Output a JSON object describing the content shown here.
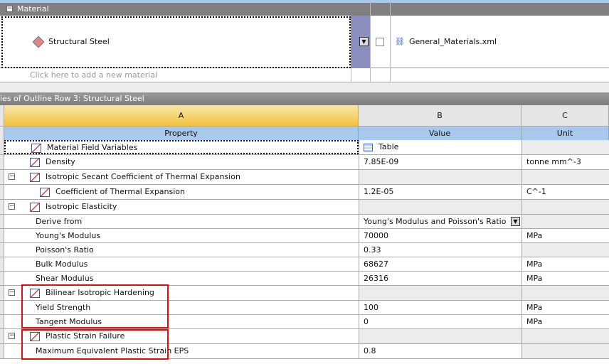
{
  "material_section": {
    "header": "Material",
    "material_name": "Structural Steel",
    "source": "General_Materials.xml",
    "add_prompt": "Click here to add a new material"
  },
  "properties": {
    "title": "ies of Outline Row 3: Structural Steel",
    "columns": [
      "A",
      "B",
      "C"
    ],
    "headers": {
      "property": "Property",
      "value": "Value",
      "unit": "Unit"
    },
    "rows": [
      {
        "property": "Material Field Variables",
        "value": "Table",
        "unit": ""
      },
      {
        "property": "Density",
        "value": "7.85E-09",
        "unit": "tonne mm^-3"
      },
      {
        "property": "Isotropic Secant Coefficient of Thermal Expansion",
        "value": "",
        "unit": ""
      },
      {
        "property": "Coefficient of Thermal Expansion",
        "value": "1.2E-05",
        "unit": "C^-1"
      },
      {
        "property": "Isotropic Elasticity",
        "value": "",
        "unit": ""
      },
      {
        "property": "Derive from",
        "value": "Young's Modulus and Poisson's Ratio",
        "unit": ""
      },
      {
        "property": "Young's Modulus",
        "value": "70000",
        "unit": "MPa"
      },
      {
        "property": "Poisson's Ratio",
        "value": "0.33",
        "unit": ""
      },
      {
        "property": "Bulk Modulus",
        "value": "68627",
        "unit": "MPa"
      },
      {
        "property": "Shear Modulus",
        "value": "26316",
        "unit": "MPa"
      },
      {
        "property": "Bilinear Isotropic Hardening",
        "value": "",
        "unit": ""
      },
      {
        "property": "Yield Strength",
        "value": "100",
        "unit": "MPa"
      },
      {
        "property": "Tangent Modulus",
        "value": "0",
        "unit": "MPa"
      },
      {
        "property": "Plastic Strain Failure",
        "value": "",
        "unit": ""
      },
      {
        "property": "Maximum Equivalent Plastic Strain EPS",
        "value": "0.8",
        "unit": ""
      }
    ]
  },
  "highlight_color": "#e01010"
}
